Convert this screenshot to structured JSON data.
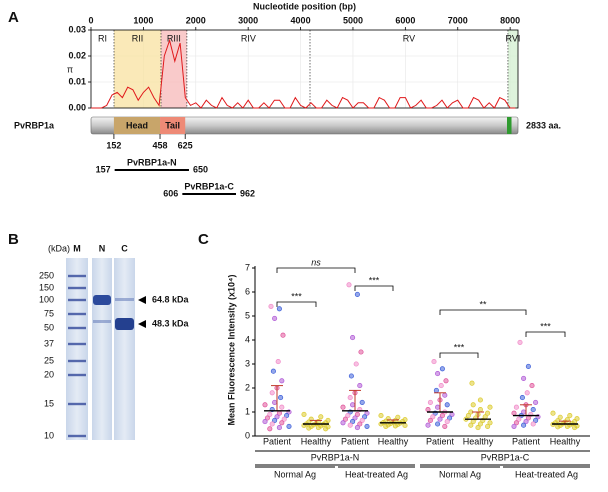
{
  "panel_labels": [
    "A",
    "B",
    "C"
  ],
  "chart_data": [
    {
      "type": "line",
      "xlabel": "Nucleotide position (bp)",
      "ylabel": "π",
      "xlim": [
        0,
        8150
      ],
      "xticks": [
        0,
        1000,
        2000,
        3000,
        4000,
        5000,
        6000,
        7000,
        8000
      ],
      "ylim": [
        0,
        0.03
      ],
      "yticks": [
        {
          "value": 0,
          "label": "0.00"
        },
        0.01,
        0.02,
        0.03
      ],
      "grid": true,
      "regions": [
        {
          "label": "RI",
          "start": 0,
          "end": 439
        },
        {
          "label": "RII",
          "start": 439,
          "end": 1336,
          "color": "#f8e2a0"
        },
        {
          "label": "RIII",
          "start": 1336,
          "end": 1830,
          "color": "#f7b8b8"
        },
        {
          "label": "RIV",
          "start": 1830,
          "end": 4180
        },
        {
          "label": "RV",
          "start": 4180,
          "end": 7958
        },
        {
          "label": "RVI",
          "start": 7958,
          "end": 8150,
          "color": "#d3efd0"
        }
      ],
      "series": [
        {
          "color": "#e0191b",
          "x": [
            0,
            100,
            200,
            300,
            400,
            500,
            600,
            700,
            800,
            900,
            1000,
            1100,
            1200,
            1300,
            1400,
            1500,
            1600,
            1700,
            1800,
            1900,
            2000,
            2100,
            2200,
            2300,
            2400,
            2500,
            2600,
            2700,
            2800,
            2900,
            3000,
            3100,
            3200,
            3300,
            3400,
            3500,
            3600,
            3700,
            3800,
            3900,
            4000,
            4100,
            4200,
            4300,
            4400,
            4500,
            4600,
            4700,
            4800,
            4900,
            5000,
            5100,
            5200,
            5300,
            5400,
            5500,
            5600,
            5700,
            5800,
            5900,
            6000,
            6100,
            6200,
            6300,
            6400,
            6500,
            6600,
            6700,
            6800,
            6900,
            7000,
            7100,
            7200,
            7300,
            7400,
            7500,
            7600,
            7700,
            7800,
            7900,
            8000,
            8100
          ],
          "values": [
            0,
            0,
            0,
            0.001,
            0.005,
            0.006,
            0.004,
            0.008,
            0.007,
            0.003,
            0.006,
            0.008,
            0.004,
            0.001,
            0.02,
            0.026,
            0.018,
            0.025,
            0.004,
            0.001,
            0.002,
            0,
            0.003,
            0.001,
            0,
            0.004,
            0.001,
            0,
            0.002,
            0,
            0.003,
            0,
            0,
            0.002,
            0,
            0.003,
            0.003,
            0,
            0,
            0.004,
            0.001,
            0,
            0.002,
            0,
            0,
            0.003,
            0.001,
            0,
            0.004,
            0.003,
            0,
            0.002,
            0.002,
            0,
            0,
            0.004,
            0.003,
            0,
            0,
            0.004,
            0.004,
            0,
            0.001,
            0.003,
            0,
            0,
            0.001,
            0.003,
            0,
            0.002,
            0.003,
            0,
            0,
            0.004,
            0.003,
            0,
            0.002,
            0,
            0.004,
            0.003,
            0,
            0
          ]
        }
      ]
    },
    {
      "type": "dot",
      "ylabel": "Mean Fluorescence Intensity (x10⁴)",
      "ylim": [
        0,
        7
      ],
      "yticks": [
        0,
        1,
        2,
        3,
        4,
        5,
        6,
        7
      ],
      "categories": [
        "Patient",
        "Healthy",
        "Patient",
        "Healthy",
        "Patient",
        "Healthy",
        "Patient",
        "Healthy"
      ],
      "antigens": [
        "PvRBP1a-N",
        "PvRBP1a-C"
      ],
      "treatments": [
        "Normal Ag",
        "Heat-treated Ag",
        "Normal Ag",
        "Heat-treated Ag"
      ],
      "groups": [
        {
          "values": [
            5.4,
            5.3,
            4.9,
            4.2,
            3.1,
            2.7,
            2.3,
            2.0,
            1.8,
            1.6,
            1.4,
            1.3,
            1.2,
            1.1,
            1.0,
            0.95,
            0.9,
            0.85,
            0.8,
            0.75,
            0.7,
            0.65,
            0.6,
            0.55,
            0.5,
            0.4,
            0.35,
            0.3
          ],
          "mean": 1.05,
          "sd": 1.05,
          "colors": [
            "#f08bc8",
            "#3d5fd9",
            "#b05ad6",
            "#e0559b"
          ]
        },
        {
          "values": [
            0.9,
            0.8,
            0.7,
            0.65,
            0.6,
            0.58,
            0.55,
            0.52,
            0.5,
            0.48,
            0.46,
            0.44,
            0.42,
            0.4,
            0.38,
            0.35,
            0.33,
            0.3
          ],
          "mean": 0.5,
          "sd": 0.15,
          "colors": [
            "#dccb2e"
          ]
        },
        {
          "values": [
            6.3,
            5.9,
            4.1,
            3.5,
            3.0,
            2.5,
            2.1,
            1.8,
            1.6,
            1.4,
            1.3,
            1.2,
            1.1,
            1.0,
            0.95,
            0.9,
            0.85,
            0.8,
            0.75,
            0.7,
            0.65,
            0.6,
            0.55,
            0.5,
            0.45,
            0.4,
            0.35
          ],
          "mean": 1.05,
          "sd": 0.85,
          "colors": [
            "#f08bc8",
            "#3d5fd9",
            "#b05ad6",
            "#e0559b"
          ]
        },
        {
          "values": [
            0.85,
            0.78,
            0.72,
            0.68,
            0.65,
            0.62,
            0.6,
            0.58,
            0.56,
            0.54,
            0.52,
            0.5,
            0.48,
            0.46,
            0.44,
            0.42,
            0.4
          ],
          "mean": 0.55,
          "sd": 0.12,
          "colors": [
            "#dccb2e"
          ]
        },
        {
          "values": [
            3.1,
            2.8,
            2.6,
            2.3,
            2.1,
            1.9,
            1.7,
            1.5,
            1.4,
            1.3,
            1.2,
            1.1,
            1.0,
            0.95,
            0.9,
            0.85,
            0.8,
            0.75,
            0.7,
            0.65,
            0.6,
            0.5,
            0.45,
            0.4
          ],
          "mean": 1.0,
          "sd": 0.8,
          "colors": [
            "#f08bc8",
            "#3d5fd9",
            "#b05ad6",
            "#e0559b"
          ]
        },
        {
          "values": [
            2.2,
            1.5,
            1.3,
            1.2,
            1.1,
            1.0,
            0.95,
            0.9,
            0.85,
            0.8,
            0.75,
            0.7,
            0.65,
            0.6,
            0.55,
            0.5,
            0.45,
            0.4,
            0.35
          ],
          "mean": 0.7,
          "sd": 0.3,
          "colors": [
            "#dccb2e"
          ]
        },
        {
          "values": [
            3.9,
            2.9,
            2.4,
            2.1,
            1.8,
            1.6,
            1.4,
            1.3,
            1.2,
            1.1,
            1.0,
            0.95,
            0.9,
            0.85,
            0.8,
            0.75,
            0.7,
            0.65,
            0.6,
            0.55,
            0.5,
            0.45,
            0.4
          ],
          "mean": 0.85,
          "sd": 0.45,
          "colors": [
            "#f08bc8",
            "#3d5fd9",
            "#b05ad6",
            "#e0559b"
          ]
        },
        {
          "values": [
            0.95,
            0.85,
            0.78,
            0.72,
            0.68,
            0.64,
            0.6,
            0.58,
            0.55,
            0.52,
            0.5,
            0.48,
            0.46,
            0.44,
            0.42,
            0.4,
            0.38,
            0.35
          ],
          "mean": 0.5,
          "sd": 0.12,
          "colors": [
            "#dccb2e"
          ]
        }
      ],
      "annotations": [
        "ns",
        "***",
        "***",
        "**",
        "***",
        "***"
      ]
    }
  ],
  "protein": {
    "name": "PvRBP1a",
    "length": 2833,
    "length_label": "2833 aa.",
    "domains": [
      {
        "label": "Head",
        "start": 152,
        "end": 458,
        "color": "#c8a56a"
      },
      {
        "label": "Tail",
        "start": 458,
        "end": 625,
        "color": "#ee8a76"
      },
      {
        "start": 2760,
        "end": 2790,
        "color": "#2f9a2f"
      }
    ],
    "constructs": [
      {
        "name": "PvRBP1a-N",
        "start": 157,
        "end": 650
      },
      {
        "name": "PvRBP1a-C",
        "start": 606,
        "end": 962
      }
    ]
  },
  "gel": {
    "unit": "(kDa)",
    "lanes": [
      "M",
      "N",
      "C"
    ],
    "markers": [
      250,
      150,
      100,
      75,
      50,
      37,
      25,
      20,
      15,
      10
    ],
    "bands": [
      {
        "label": "64.8 kDa"
      },
      {
        "label": "48.3 kDa"
      }
    ]
  }
}
